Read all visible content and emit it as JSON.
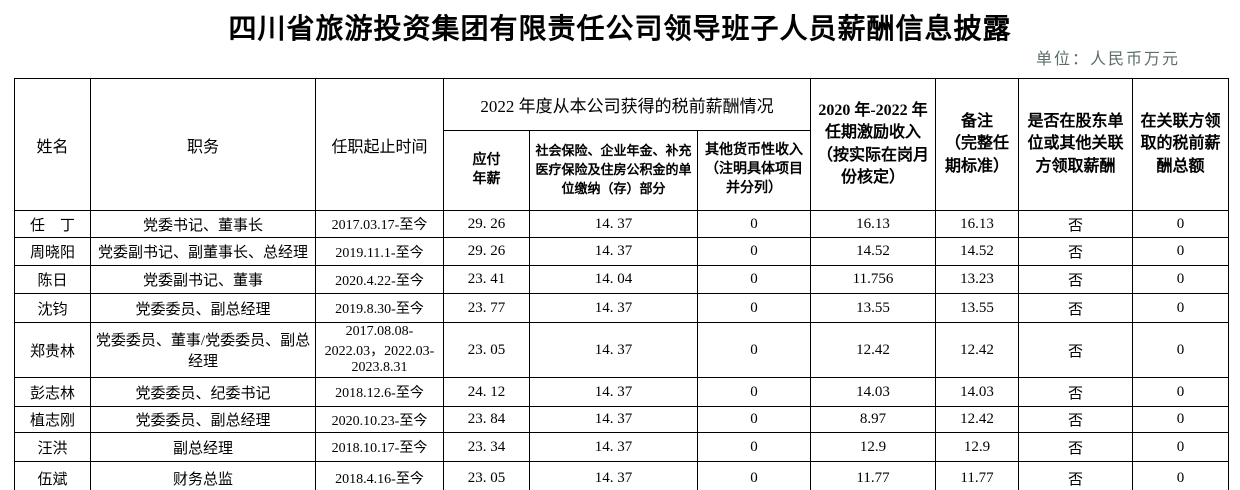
{
  "page": {
    "title": "四川省旅游投资集团有限责任公司领导班子人员薪酬信息披露",
    "unit_note": "单位：人民币万元"
  },
  "table": {
    "headers": {
      "name": "姓名",
      "position": "职务",
      "term": "任职起止时间",
      "salary_2022_group": "2022 年度从本公司获得的税前薪酬情况",
      "payable_salary": "应付年薪",
      "insurance": "社会保险、企业年金、补充医疗保险及住房公积金的单位缴纳（存）部分",
      "other_income": "其他货币性收入（注明具体项目并分列）",
      "incentive": "2020 年-2022 年任期激励收入（按实际在岗月份核定）",
      "note": "备注\n（完整任期标准）",
      "related_party_paid": "是否在股东单位或其他关联方领取薪酬",
      "related_party_amount": "在关联方领取的税前薪酬总额"
    },
    "rows": [
      {
        "name": "任　丁",
        "position": "党委书记、董事长",
        "term": "2017.03.17-至今",
        "payable_salary": "29. 26",
        "insurance": "14. 37",
        "other_income": "0",
        "incentive": "16.13",
        "note": "16.13",
        "related_party_paid": "否",
        "related_party_amount": "0"
      },
      {
        "name": "周晓阳",
        "position": "党委副书记、副董事长、总经理",
        "term": "2019.11.1-至今",
        "payable_salary": "29. 26",
        "insurance": "14. 37",
        "other_income": "0",
        "incentive": "14.52",
        "note": "14.52",
        "related_party_paid": "否",
        "related_party_amount": "0"
      },
      {
        "name": "陈日",
        "position": "党委副书记、董事",
        "term": "2020.4.22-至今",
        "payable_salary": "23. 41",
        "insurance": "14. 04",
        "other_income": "0",
        "incentive": "11.756",
        "note": "13.23",
        "related_party_paid": "否",
        "related_party_amount": "0"
      },
      {
        "name": "沈钧",
        "position": "党委委员、副总经理",
        "term": "2019.8.30-至今",
        "payable_salary": "23. 77",
        "insurance": "14. 37",
        "other_income": "0",
        "incentive": "13.55",
        "note": "13.55",
        "related_party_paid": "否",
        "related_party_amount": "0"
      },
      {
        "name": "郑贵林",
        "position": "党委委员、董事/党委委员、副总经理",
        "term": "2017.08.08-2022.03，2022.03-2023.8.31",
        "payable_salary": "23. 05",
        "insurance": "14. 37",
        "other_income": "0",
        "incentive": "12.42",
        "note": "12.42",
        "related_party_paid": "否",
        "related_party_amount": "0"
      },
      {
        "name": "彭志林",
        "position": "党委委员、纪委书记",
        "term": "2018.12.6-至今",
        "payable_salary": "24. 12",
        "insurance": "14. 37",
        "other_income": "0",
        "incentive": "14.03",
        "note": "14.03",
        "related_party_paid": "否",
        "related_party_amount": "0"
      },
      {
        "name": "植志刚",
        "position": "党委委员、副总经理",
        "term": "2020.10.23-至今",
        "payable_salary": "23. 84",
        "insurance": "14. 37",
        "other_income": "0",
        "incentive": "8.97",
        "note": "12.42",
        "related_party_paid": "否",
        "related_party_amount": "0"
      },
      {
        "name": "汪洪",
        "position": "副总经理",
        "term": "2018.10.17-至今",
        "payable_salary": "23. 34",
        "insurance": "14. 37",
        "other_income": "0",
        "incentive": "12.9",
        "note": "12.9",
        "related_party_paid": "否",
        "related_party_amount": "0"
      },
      {
        "name": "伍斌",
        "position": "财务总监",
        "term": "2018.4.16-至今",
        "payable_salary": "23. 05",
        "insurance": "14. 37",
        "other_income": "0",
        "incentive": "11.77",
        "note": "11.77",
        "related_party_paid": "否",
        "related_party_amount": "0"
      }
    ]
  }
}
